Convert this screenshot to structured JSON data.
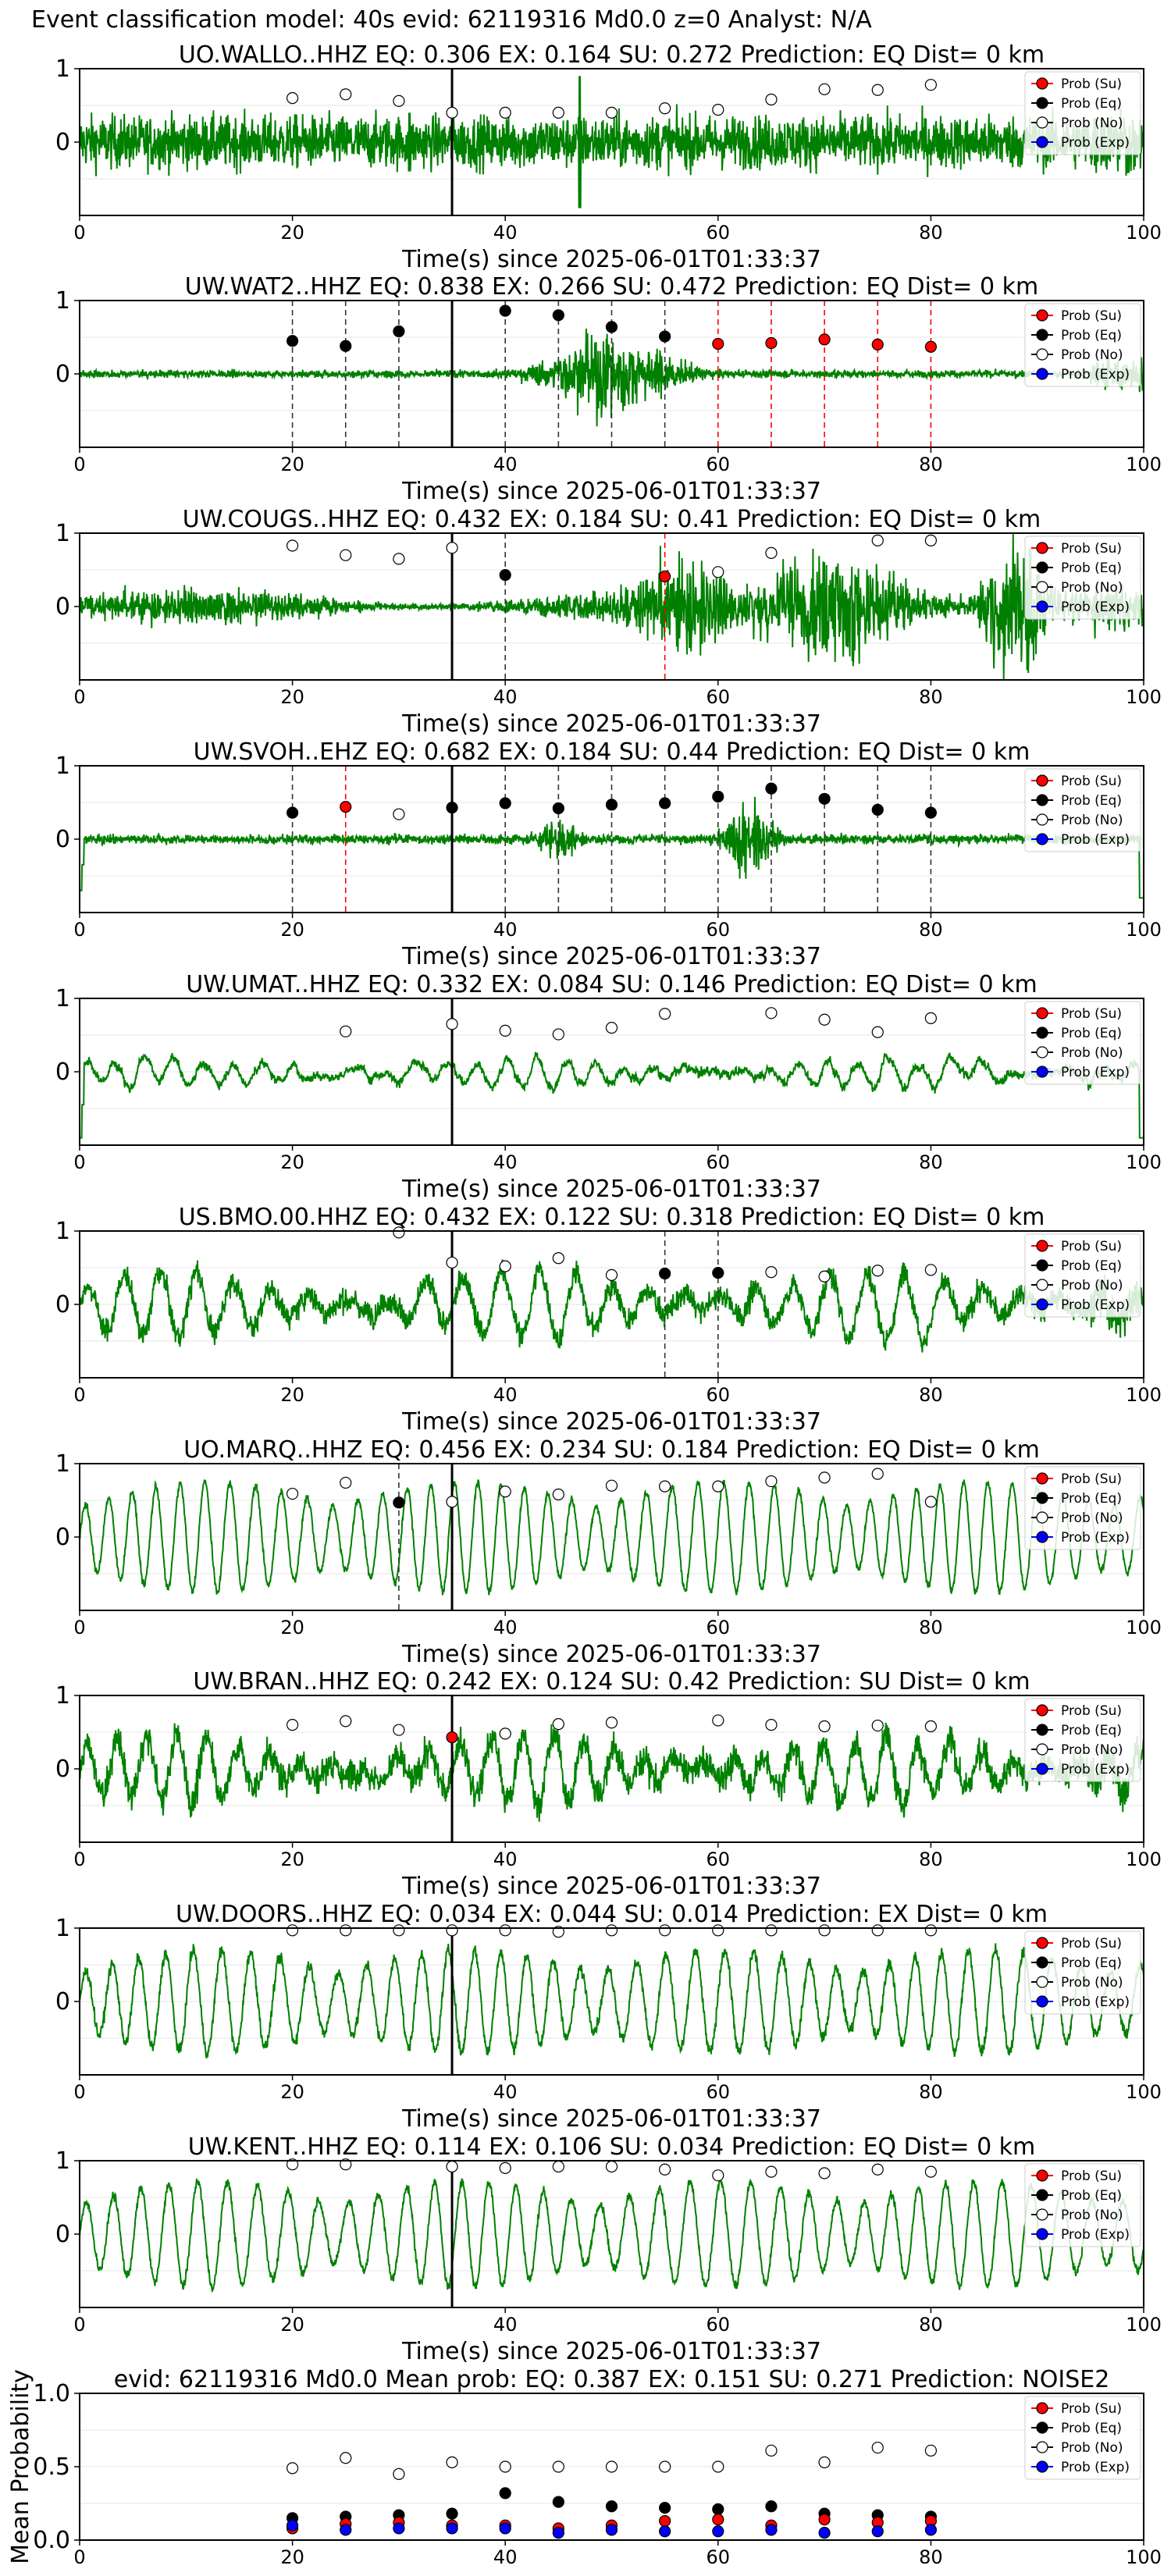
{
  "figure_title": "Event classification model: 40s evid: 62119316 Md0.0 z=0 Analyst: N/A",
  "legend": [
    {
      "label": "Prob (Su)",
      "color": "#ff0000",
      "marker_fill": "#ff0000"
    },
    {
      "label": "Prob (Eq)",
      "color": "#000000",
      "marker_fill": "#000000"
    },
    {
      "label": "Prob (No)",
      "color": "#000000",
      "marker_fill": "#ffffff"
    },
    {
      "label": "Prob (Exp)",
      "color": "#0000ff",
      "marker_fill": "#0000ff"
    }
  ],
  "colors": {
    "waveform": "#008000",
    "su": "#ff0000",
    "eq": "#000000",
    "no": "#ffffff",
    "exp": "#0000ff",
    "dash_eq": "#333333",
    "dash_su": "#ff0000"
  },
  "chart_data": [
    {
      "type": "line",
      "title": "UO.WALLO..HHZ   EQ: 0.306  EX: 0.164  SU: 0.272   Prediction: EQ    Dist= 0 km",
      "xlabel": "Time(s) since 2025-06-01T01:33:37",
      "ylabel": "",
      "xlim": [
        0,
        100
      ],
      "ylim": [
        -1,
        1
      ],
      "xticks": [
        0,
        20,
        40,
        60,
        80,
        100
      ],
      "yticks": [
        0,
        1
      ],
      "reference_line_x": 35,
      "waveform": {
        "style": "noise",
        "amplitude": 0.35,
        "spikes": [
          [
            47,
            0.9
          ],
          [
            31,
            0.4
          ]
        ],
        "tail": 0.35
      },
      "series": [
        {
          "name": "Prob (No)",
          "x": [
            20,
            25,
            30,
            35,
            40,
            45,
            50,
            55,
            60,
            65,
            70,
            75,
            80
          ],
          "values": [
            0.6,
            0.65,
            0.56,
            0.4,
            0.4,
            0.4,
            0.4,
            0.46,
            0.44,
            0.58,
            0.72,
            0.71,
            0.78
          ]
        }
      ],
      "dashed_eq_x": [],
      "dashed_su_x": []
    },
    {
      "type": "line",
      "title": "UW.WAT2..HHZ   EQ: 0.838  EX: 0.266  SU: 0.472   Prediction: EQ    Dist= 0 km",
      "xlabel": "Time(s) since 2025-06-01T01:33:37",
      "ylabel": "",
      "xlim": [
        0,
        100
      ],
      "ylim": [
        -1,
        1
      ],
      "xticks": [
        0,
        20,
        40,
        60,
        80,
        100
      ],
      "yticks": [
        0,
        1
      ],
      "reference_line_x": 35,
      "waveform": {
        "style": "burst",
        "amplitude": 0.05,
        "burst_center": 50,
        "burst_width": 6,
        "burst_amp": 0.55,
        "tail": 0.35
      },
      "series": [
        {
          "name": "Prob (Eq)",
          "x": [
            20,
            25,
            30,
            40,
            45,
            50,
            55
          ],
          "values": [
            0.45,
            0.38,
            0.58,
            0.86,
            0.8,
            0.64,
            0.51
          ]
        },
        {
          "name": "Prob (Su)",
          "x": [
            60,
            65,
            70,
            75,
            80
          ],
          "values": [
            0.41,
            0.42,
            0.47,
            0.4,
            0.37
          ]
        }
      ],
      "dashed_eq_x": [
        20,
        25,
        30,
        40,
        45,
        50,
        55
      ],
      "dashed_su_x": [
        60,
        65,
        70,
        75,
        80
      ]
    },
    {
      "type": "line",
      "title": "UW.COUGS..HHZ   EQ: 0.432  EX: 0.184  SU: 0.41   Prediction: EQ    Dist= 0 km",
      "xlabel": "Time(s) since 2025-06-01T01:33:37",
      "ylabel": "",
      "xlim": [
        0,
        100
      ],
      "ylim": [
        -1,
        1
      ],
      "xticks": [
        0,
        20,
        40,
        60,
        80,
        100
      ],
      "yticks": [
        0,
        1
      ],
      "reference_line_x": 35,
      "waveform": {
        "style": "growing",
        "amplitude": 0.25,
        "bursts": [
          [
            57,
            5,
            0.6
          ],
          [
            71,
            8,
            0.7
          ],
          [
            88,
            3,
            0.95
          ]
        ],
        "tail": 0.4
      },
      "series": [
        {
          "name": "Prob (No)",
          "x": [
            20,
            25,
            30,
            35,
            60,
            65,
            75,
            80
          ],
          "values": [
            0.83,
            0.7,
            0.65,
            0.8,
            0.47,
            0.73,
            0.9,
            0.9
          ]
        },
        {
          "name": "Prob (Eq)",
          "x": [
            40
          ],
          "values": [
            0.43
          ]
        },
        {
          "name": "Prob (Su)",
          "x": [
            55
          ],
          "values": [
            0.41
          ]
        }
      ],
      "dashed_eq_x": [
        40
      ],
      "dashed_su_x": [
        55
      ]
    },
    {
      "type": "line",
      "title": "UW.SVOH..EHZ   EQ: 0.682  EX: 0.184  SU: 0.44   Prediction: EQ    Dist= 0 km",
      "xlabel": "Time(s) since 2025-06-01T01:33:37",
      "ylabel": "",
      "xlim": [
        0,
        100
      ],
      "ylim": [
        -1,
        1
      ],
      "xticks": [
        0,
        20,
        40,
        60,
        80,
        100
      ],
      "yticks": [
        0,
        1
      ],
      "reference_line_x": 35,
      "waveform": {
        "style": "burst",
        "amplitude": 0.06,
        "bursts": [
          [
            45,
            2,
            0.3
          ],
          [
            63,
            2.5,
            0.55
          ]
        ],
        "start_spike": 0.7,
        "end_spike": 0.8
      },
      "series": [
        {
          "name": "Prob (Eq)",
          "x": [
            20,
            35,
            40,
            45,
            50,
            55,
            60,
            65,
            70,
            75,
            80
          ],
          "values": [
            0.36,
            0.43,
            0.49,
            0.42,
            0.47,
            0.49,
            0.58,
            0.69,
            0.55,
            0.4,
            0.36
          ]
        },
        {
          "name": "Prob (Su)",
          "x": [
            25
          ],
          "values": [
            0.44
          ]
        },
        {
          "name": "Prob (No)",
          "x": [
            30
          ],
          "values": [
            0.34
          ]
        }
      ],
      "dashed_eq_x": [
        20,
        40,
        45,
        50,
        55,
        60,
        65,
        70,
        75,
        80
      ],
      "dashed_su_x": [
        25
      ]
    },
    {
      "type": "line",
      "title": "UW.UMAT..HHZ   EQ: 0.332  EX: 0.084  SU: 0.146   Prediction: EQ    Dist= 0 km",
      "xlabel": "Time(s) since 2025-06-01T01:33:37",
      "ylabel": "",
      "xlim": [
        0,
        100
      ],
      "ylim": [
        -1,
        1
      ],
      "xticks": [
        0,
        20,
        40,
        60,
        80,
        100
      ],
      "yticks": [
        0,
        1
      ],
      "reference_line_x": 35,
      "waveform": {
        "style": "smooth",
        "amplitude": 0.18,
        "period": 2.8,
        "start_spike": 0.9,
        "end_spike": 0.9
      },
      "series": [
        {
          "name": "Prob (No)",
          "x": [
            25,
            35,
            40,
            45,
            50,
            55,
            65,
            70,
            75,
            80
          ],
          "values": [
            0.55,
            0.65,
            0.56,
            0.51,
            0.6,
            0.79,
            0.8,
            0.71,
            0.54,
            0.73
          ]
        }
      ],
      "dashed_eq_x": [],
      "dashed_su_x": []
    },
    {
      "type": "line",
      "title": "US.BMO.00.HHZ   EQ: 0.432  EX: 0.122  SU: 0.318   Prediction: EQ    Dist= 0 km",
      "xlabel": "Time(s) since 2025-06-01T01:33:37",
      "ylabel": "",
      "xlim": [
        0,
        100
      ],
      "ylim": [
        -1,
        1
      ],
      "xticks": [
        0,
        20,
        40,
        60,
        80,
        100
      ],
      "yticks": [
        0,
        1
      ],
      "reference_line_x": 35,
      "waveform": {
        "style": "smooth",
        "amplitude": 0.45,
        "period": 3.5,
        "noise": 0.15,
        "tail": 0.35
      },
      "series": [
        {
          "name": "Prob (No)",
          "x": [
            30,
            35,
            40,
            45,
            50,
            65,
            70,
            75,
            80
          ],
          "values": [
            0.98,
            0.57,
            0.52,
            0.63,
            0.4,
            0.44,
            0.38,
            0.46,
            0.47
          ]
        },
        {
          "name": "Prob (Eq)",
          "x": [
            55,
            60
          ],
          "values": [
            0.42,
            0.43
          ]
        }
      ],
      "dashed_eq_x": [
        55,
        60
      ],
      "dashed_su_x": []
    },
    {
      "type": "line",
      "title": "UO.MARQ..HHZ   EQ: 0.456  EX: 0.234  SU: 0.184   Prediction: EQ    Dist= 0 km",
      "xlabel": "Time(s) since 2025-06-01T01:33:37",
      "ylabel": "",
      "xlim": [
        0,
        100
      ],
      "ylim": [
        -1,
        1
      ],
      "xticks": [
        0,
        20,
        40,
        60,
        80,
        100
      ],
      "yticks": [
        0,
        1
      ],
      "reference_line_x": 35,
      "waveform": {
        "style": "sine",
        "amplitude": 0.75,
        "period": 2.3,
        "noise": 0.05
      },
      "series": [
        {
          "name": "Prob (No)",
          "x": [
            20,
            25,
            35,
            40,
            45,
            50,
            55,
            60,
            65,
            70,
            75,
            80
          ],
          "values": [
            0.59,
            0.74,
            0.48,
            0.62,
            0.58,
            0.7,
            0.69,
            0.69,
            0.76,
            0.81,
            0.86,
            0.48
          ]
        },
        {
          "name": "Prob (Eq)",
          "x": [
            30
          ],
          "values": [
            0.47
          ]
        }
      ],
      "dashed_eq_x": [
        30
      ],
      "dashed_su_x": []
    },
    {
      "type": "line",
      "title": "UW.BRAN..HHZ   EQ: 0.242  EX: 0.124  SU: 0.42   Prediction: SU    Dist= 0 km",
      "xlabel": "Time(s) since 2025-06-01T01:33:37",
      "ylabel": "",
      "xlim": [
        0,
        100
      ],
      "ylim": [
        -1,
        1
      ],
      "xticks": [
        0,
        20,
        40,
        60,
        80,
        100
      ],
      "yticks": [
        0,
        1
      ],
      "reference_line_x": 35,
      "waveform": {
        "style": "smooth",
        "amplitude": 0.45,
        "period": 2.9,
        "noise": 0.2,
        "tail": 0.35
      },
      "series": [
        {
          "name": "Prob (No)",
          "x": [
            20,
            25,
            30,
            40,
            45,
            50,
            60,
            65,
            70,
            75,
            80
          ],
          "values": [
            0.6,
            0.65,
            0.53,
            0.48,
            0.61,
            0.63,
            0.66,
            0.6,
            0.58,
            0.59,
            0.58
          ]
        },
        {
          "name": "Prob (Su)",
          "x": [
            35
          ],
          "values": [
            0.43
          ]
        }
      ],
      "dashed_eq_x": [],
      "dashed_su_x": []
    },
    {
      "type": "line",
      "title": "UW.DOORS..HHZ   EQ: 0.034  EX: 0.044  SU: 0.014   Prediction: EX    Dist= 0 km",
      "xlabel": "Time(s) since 2025-06-01T01:33:37",
      "ylabel": "",
      "xlim": [
        0,
        100
      ],
      "ylim": [
        -1,
        1
      ],
      "xticks": [
        0,
        20,
        40,
        60,
        80,
        100
      ],
      "yticks": [
        0,
        1
      ],
      "reference_line_x": 35,
      "waveform": {
        "style": "sine",
        "amplitude": 0.7,
        "period": 2.6,
        "noise": 0.08
      },
      "series": [
        {
          "name": "Prob (No)",
          "x": [
            20,
            25,
            30,
            35,
            40,
            45,
            50,
            55,
            60,
            65,
            70,
            75,
            80
          ],
          "values": [
            0.97,
            0.97,
            0.97,
            0.97,
            0.97,
            0.95,
            0.97,
            0.97,
            0.97,
            0.97,
            0.97,
            0.97,
            0.97
          ]
        }
      ],
      "dashed_eq_x": [],
      "dashed_su_x": []
    },
    {
      "type": "line",
      "title": "UW.KENT..HHZ   EQ: 0.114  EX: 0.106  SU: 0.034   Prediction: EQ    Dist= 0 km",
      "xlabel": "Time(s) since 2025-06-01T01:33:37",
      "ylabel": "",
      "xlim": [
        0,
        100
      ],
      "ylim": [
        -1,
        1
      ],
      "xticks": [
        0,
        20,
        40,
        60,
        80,
        100
      ],
      "yticks": [
        0,
        1
      ],
      "reference_line_x": 35,
      "waveform": {
        "style": "sine",
        "amplitude": 0.72,
        "period": 2.7,
        "noise": 0.06
      },
      "series": [
        {
          "name": "Prob (No)",
          "x": [
            20,
            25,
            35,
            40,
            45,
            50,
            55,
            60,
            65,
            70,
            75,
            80
          ],
          "values": [
            0.95,
            0.95,
            0.92,
            0.9,
            0.92,
            0.92,
            0.88,
            0.8,
            0.85,
            0.83,
            0.88,
            0.85
          ]
        }
      ],
      "dashed_eq_x": [],
      "dashed_su_x": []
    },
    {
      "type": "scatter",
      "title": "evid: 62119316  Md0.0   Mean prob:   EQ: 0.387  EX: 0.151  SU: 0.271   Prediction: NOISE2",
      "xlabel": "",
      "ylabel": "Mean Probability",
      "xlim": [
        0,
        100
      ],
      "ylim": [
        0,
        1
      ],
      "xticks": [
        0,
        20,
        40,
        60,
        80,
        100
      ],
      "yticks": [
        0.0,
        0.5,
        1.0
      ],
      "series": [
        {
          "name": "Prob (No)",
          "x": [
            20,
            25,
            30,
            35,
            40,
            45,
            50,
            55,
            60,
            65,
            70,
            75,
            80
          ],
          "values": [
            0.49,
            0.56,
            0.45,
            0.53,
            0.5,
            0.5,
            0.5,
            0.5,
            0.5,
            0.61,
            0.53,
            0.63,
            0.61
          ]
        },
        {
          "name": "Prob (Eq)",
          "x": [
            20,
            25,
            30,
            35,
            40,
            45,
            50,
            55,
            60,
            65,
            70,
            75,
            80
          ],
          "values": [
            0.15,
            0.16,
            0.17,
            0.18,
            0.32,
            0.26,
            0.23,
            0.22,
            0.21,
            0.23,
            0.18,
            0.17,
            0.16
          ]
        },
        {
          "name": "Prob (Su)",
          "x": [
            20,
            25,
            30,
            35,
            40,
            45,
            50,
            55,
            60,
            65,
            70,
            75,
            80
          ],
          "values": [
            0.08,
            0.11,
            0.12,
            0.1,
            0.1,
            0.08,
            0.1,
            0.13,
            0.14,
            0.1,
            0.14,
            0.12,
            0.13
          ]
        },
        {
          "name": "Prob (Exp)",
          "x": [
            20,
            25,
            30,
            35,
            40,
            45,
            50,
            55,
            60,
            65,
            70,
            75,
            80
          ],
          "values": [
            0.1,
            0.07,
            0.08,
            0.08,
            0.08,
            0.05,
            0.07,
            0.06,
            0.06,
            0.07,
            0.05,
            0.06,
            0.07
          ]
        }
      ],
      "dashed_eq_x": [],
      "dashed_su_x": []
    }
  ]
}
